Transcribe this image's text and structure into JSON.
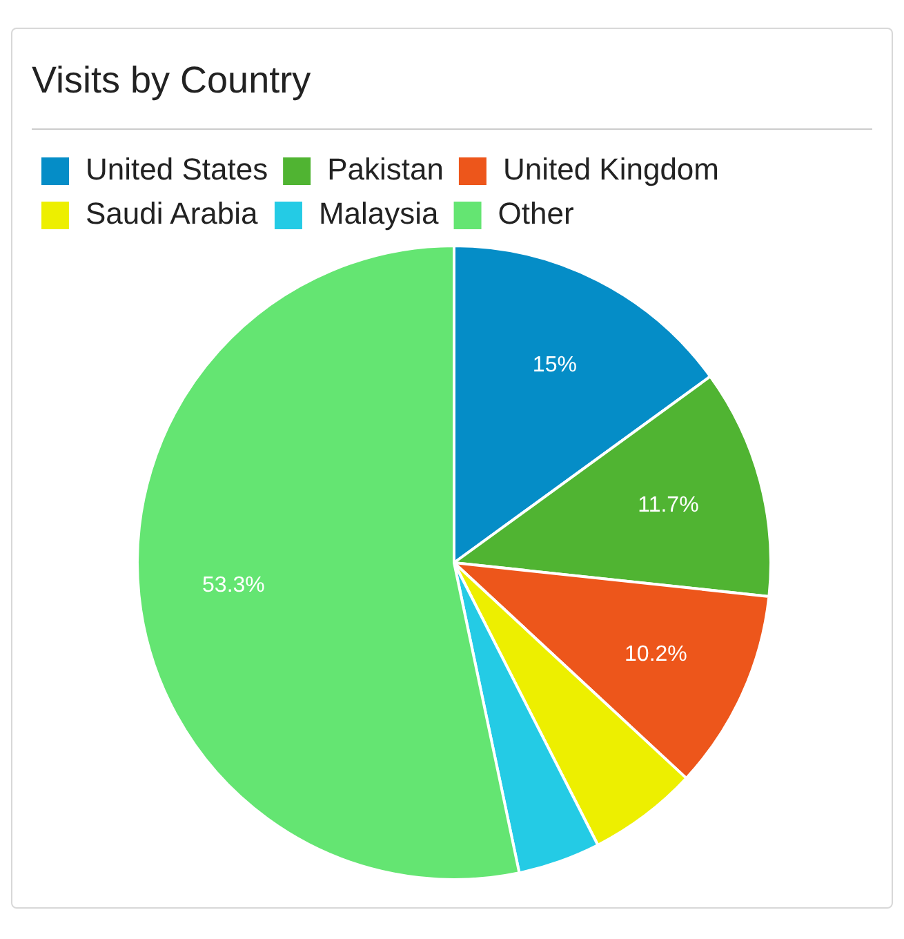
{
  "chart_data": {
    "type": "pie",
    "title": "Visits by Country",
    "categories": [
      "United States",
      "Pakistan",
      "United Kingdom",
      "Saudi Arabia",
      "Malaysia",
      "Other"
    ],
    "values": [
      15,
      11.7,
      10.2,
      5.6,
      4.2,
      53.3
    ],
    "colors": [
      "#058dc7",
      "#50b432",
      "#ed561b",
      "#edef00",
      "#24cbe5",
      "#64e572"
    ],
    "value_labels": [
      "15%",
      "11.7%",
      "10.2%",
      null,
      null,
      "53.3%"
    ],
    "legend": "top left"
  }
}
